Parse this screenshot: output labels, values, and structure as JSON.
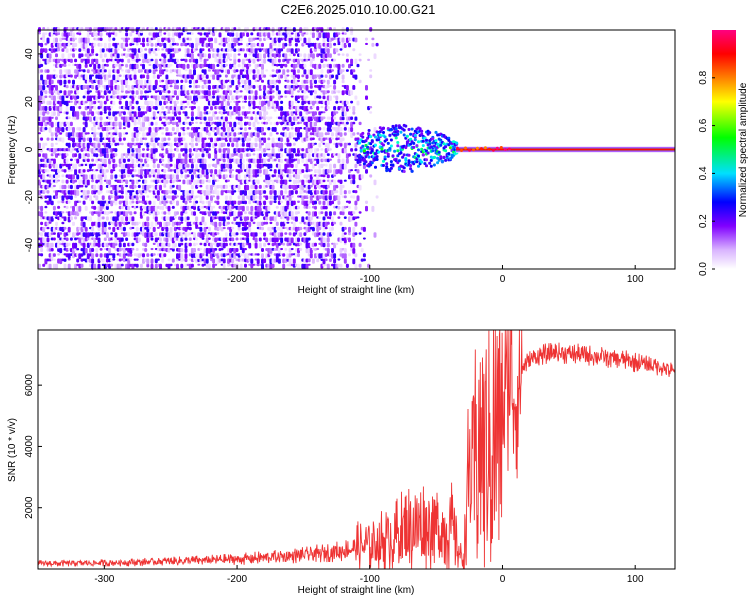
{
  "figure_title": "C2E6.2025.010.10.00.G21",
  "colors": {
    "snr_line": "#ee3333",
    "axis": "#000000",
    "background": "#ffffff"
  },
  "chart_data": [
    {
      "id": "spectrogram",
      "type": "heatmap",
      "title": "C2E6.2025.010.10.00.G21",
      "xlabel": "Height of straight line (km)",
      "ylabel": "Frequency (Hz)",
      "xlim": [
        -350,
        130
      ],
      "ylim": [
        -50,
        50
      ],
      "x_ticks": [
        -300,
        -200,
        -100,
        0,
        100
      ],
      "y_ticks": [
        -40,
        -20,
        0,
        20,
        40
      ],
      "grid": false,
      "description_regions": [
        {
          "x_range": [
            -350,
            -110
          ],
          "y_range": [
            -50,
            50
          ],
          "amplitude_range": [
            0.05,
            0.3
          ],
          "pattern": "broad noise"
        },
        {
          "x_range": [
            -110,
            -35
          ],
          "y_range": [
            -10,
            10
          ],
          "amplitude_range": [
            0.2,
            0.6
          ],
          "pattern": "scattered cluster"
        },
        {
          "x_range": [
            -35,
            130
          ],
          "y_range": [
            -1,
            1
          ],
          "amplitude_range": [
            0.7,
            1.0
          ],
          "pattern": "narrow line at 0 Hz"
        }
      ],
      "colorbar": {
        "label": "Normalized spectral amplitude",
        "range": [
          0.0,
          1.0
        ],
        "ticks": [
          "0.0",
          "0.2",
          "0.4",
          "0.6",
          "0.8"
        ],
        "tick_values": [
          0.0,
          0.2,
          0.4,
          0.6,
          0.8
        ],
        "colormap": [
          "#ffffff",
          "#e6ccff",
          "#8000ff",
          "#0000ff",
          "#00ffff",
          "#00ff00",
          "#ffff00",
          "#ff8000",
          "#ff0000",
          "#ff0080"
        ]
      }
    },
    {
      "id": "snr",
      "type": "line",
      "xlabel": "Height of straight line (km)",
      "ylabel": "SNR (10 * v/v)",
      "xlim": [
        -350,
        130
      ],
      "ylim": [
        0,
        7800
      ],
      "x_ticks": [
        -300,
        -200,
        -100,
        0,
        100
      ],
      "y_ticks": [
        2000,
        4000,
        6000
      ],
      "grid": false,
      "series": [
        {
          "name": "SNR",
          "x": [
            -350,
            -300,
            -250,
            -200,
            -150,
            -120,
            -100,
            -85,
            -70,
            -55,
            -45,
            -40,
            -35,
            -30,
            -25,
            -20,
            -15,
            -10,
            -5,
            0,
            5,
            10,
            15,
            20,
            30,
            40,
            60,
            80,
            100,
            120,
            130
          ],
          "y": [
            180,
            200,
            250,
            320,
            450,
            600,
            800,
            1000,
            1300,
            1400,
            1200,
            1500,
            900,
            200,
            3000,
            3500,
            4200,
            3600,
            4500,
            5000,
            6500,
            5500,
            6600,
            6800,
            7000,
            7050,
            7000,
            6900,
            6750,
            6600,
            6400
          ]
        }
      ]
    }
  ]
}
